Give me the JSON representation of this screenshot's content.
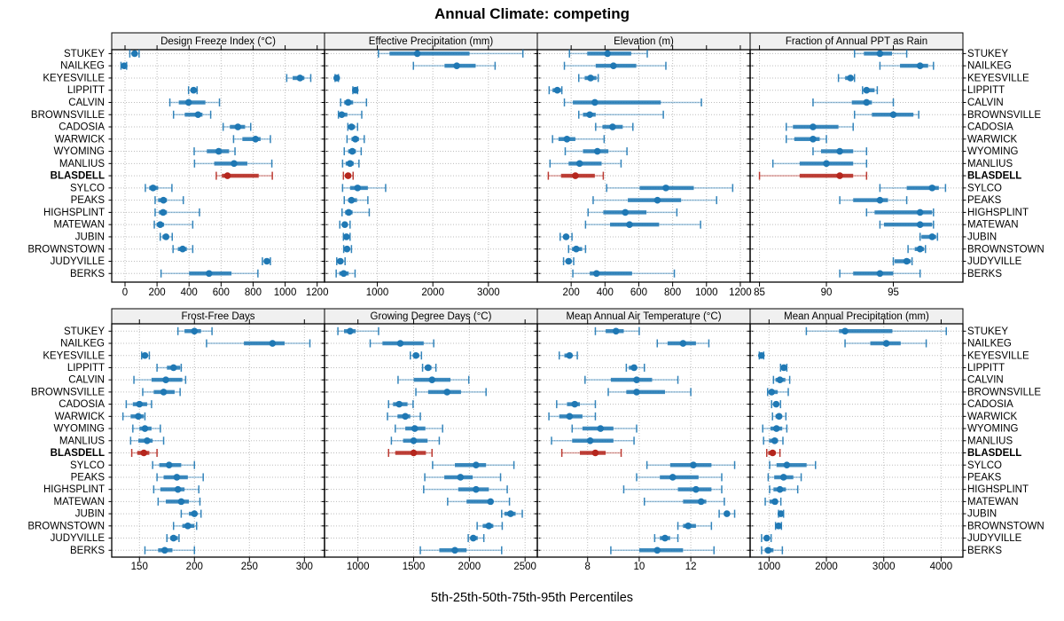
{
  "title": "Annual Climate: competing",
  "caption": "5th-25th-50th-75th-95th Percentiles",
  "percentiles": [
    5,
    25,
    50,
    75,
    95
  ],
  "highlight_station": "BLASDELL",
  "colors": {
    "series": "#1f78b4",
    "highlight": "#b5261d",
    "grid": "#bdbdbd",
    "header_bg": "#f0f0f0",
    "panel_border": "#000000",
    "text": "#000000"
  },
  "stations": [
    "STUKEY",
    "NAILKEG",
    "KEYESVILLE",
    "LIPPITT",
    "CALVIN",
    "BROWNSVILLE",
    "CADOSIA",
    "WARWICK",
    "WYOMING",
    "MANLIUS",
    "BLASDELL",
    "SYLCO",
    "PEAKS",
    "HIGHSPLINT",
    "MATEWAN",
    "JUBIN",
    "BROWNSTOWN",
    "JUDYVILLE",
    "BERKS"
  ],
  "chart_data": {
    "type": "dotplot-multipanel",
    "panel_layout": {
      "rows": 2,
      "cols": 4
    },
    "panels": [
      {
        "title": "Design Freeze Index (°C)",
        "row": "top",
        "col": 0,
        "xlim": [
          -83,
          1246
        ],
        "ticks": [
          0,
          200,
          400,
          600,
          800,
          1000,
          1200
        ],
        "values": [
          [
            30,
            42,
            60,
            78,
            88
          ],
          [
            -25,
            -12,
            -5,
            2,
            10
          ],
          [
            1010,
            1047,
            1093,
            1120,
            1160
          ],
          [
            397,
            410,
            428,
            441,
            450
          ],
          [
            280,
            336,
            397,
            502,
            590
          ],
          [
            303,
            373,
            456,
            484,
            535
          ],
          [
            613,
            655,
            705,
            750,
            785
          ],
          [
            678,
            733,
            815,
            847,
            908
          ],
          [
            432,
            511,
            585,
            650,
            687
          ],
          [
            434,
            557,
            681,
            764,
            917
          ],
          [
            570,
            605,
            640,
            835,
            920
          ],
          [
            127,
            151,
            175,
            207,
            293
          ],
          [
            188,
            207,
            240,
            262,
            364
          ],
          [
            188,
            212,
            238,
            262,
            465
          ],
          [
            183,
            197,
            220,
            244,
            423
          ],
          [
            220,
            234,
            256,
            271,
            295
          ],
          [
            300,
            330,
            360,
            386,
            423
          ],
          [
            858,
            871,
            886,
            899,
            908
          ],
          [
            225,
            400,
            525,
            665,
            830
          ]
        ]
      },
      {
        "title": "Effective Precipitation (mm)",
        "row": "top",
        "col": 1,
        "xlim": [
          50,
          3880
        ],
        "ticks": [
          1000,
          2000,
          3000
        ],
        "values": [
          [
            1020,
            1220,
            1720,
            2660,
            3620
          ],
          [
            1650,
            2210,
            2430,
            2770,
            3120
          ],
          [
            240,
            260,
            270,
            285,
            300
          ],
          [
            560,
            590,
            605,
            625,
            645
          ],
          [
            340,
            405,
            475,
            565,
            805
          ],
          [
            300,
            325,
            360,
            460,
            720
          ],
          [
            470,
            495,
            535,
            600,
            645
          ],
          [
            455,
            535,
            605,
            670,
            765
          ],
          [
            405,
            475,
            550,
            615,
            710
          ],
          [
            375,
            430,
            510,
            575,
            670
          ],
          [
            390,
            420,
            475,
            525,
            565
          ],
          [
            375,
            510,
            645,
            830,
            1150
          ],
          [
            405,
            475,
            535,
            635,
            830
          ],
          [
            365,
            420,
            485,
            555,
            855
          ],
          [
            325,
            385,
            415,
            450,
            510
          ],
          [
            390,
            430,
            445,
            465,
            510
          ],
          [
            395,
            430,
            455,
            480,
            535
          ],
          [
            270,
            310,
            335,
            360,
            420
          ],
          [
            260,
            315,
            395,
            485,
            600
          ]
        ]
      },
      {
        "title": "Elevation (m)",
        "row": "top",
        "col": 2,
        "xlim": [
          0,
          1258
        ],
        "ticks": [
          200,
          400,
          600,
          800,
          1000,
          1200
        ],
        "values": [
          [
            190,
            295,
            415,
            555,
            650
          ],
          [
            160,
            345,
            450,
            585,
            760
          ],
          [
            245,
            280,
            315,
            350,
            360
          ],
          [
            70,
            90,
            118,
            140,
            145
          ],
          [
            160,
            210,
            340,
            730,
            970
          ],
          [
            245,
            270,
            310,
            345,
            745
          ],
          [
            345,
            385,
            445,
            505,
            565
          ],
          [
            90,
            125,
            175,
            225,
            395
          ],
          [
            165,
            270,
            355,
            420,
            530
          ],
          [
            75,
            185,
            250,
            380,
            495
          ],
          [
            65,
            140,
            225,
            340,
            390
          ],
          [
            410,
            605,
            760,
            925,
            1155
          ],
          [
            330,
            535,
            710,
            850,
            1060
          ],
          [
            300,
            390,
            520,
            645,
            825
          ],
          [
            285,
            430,
            545,
            720,
            965
          ],
          [
            135,
            155,
            170,
            185,
            205
          ],
          [
            185,
            205,
            230,
            265,
            285
          ],
          [
            155,
            170,
            185,
            200,
            215
          ],
          [
            210,
            310,
            350,
            560,
            810
          ]
        ]
      },
      {
        "title": "Fraction of Annual PPT as Rain",
        "row": "top",
        "col": 3,
        "xlim": [
          84.3,
          100.2
        ],
        "ticks": [
          85,
          90,
          95
        ],
        "values": [
          [
            92.1,
            92.8,
            94,
            94.9,
            96
          ],
          [
            94,
            95.5,
            97,
            97.6,
            98
          ],
          [
            90.9,
            91.4,
            91.8,
            92,
            92.1
          ],
          [
            92.7,
            92.8,
            93,
            93.6,
            93.8
          ],
          [
            89,
            91.9,
            93,
            93.4,
            95
          ],
          [
            92.1,
            93.4,
            95,
            96.5,
            96.9
          ],
          [
            87,
            87.5,
            89,
            90.9,
            92
          ],
          [
            87,
            87.6,
            89,
            89.5,
            90
          ],
          [
            89,
            89.6,
            91,
            92,
            93
          ],
          [
            86,
            88,
            90,
            92,
            93
          ],
          [
            85,
            88,
            91,
            92,
            93
          ],
          [
            94,
            96,
            97.9,
            98.4,
            98.9
          ],
          [
            91,
            92,
            94,
            94.6,
            96
          ],
          [
            93,
            93.6,
            97,
            97.9,
            98
          ],
          [
            94,
            94.3,
            97,
            97.9,
            98
          ],
          [
            97,
            97.1,
            97.9,
            98.2,
            98.3
          ],
          [
            96.1,
            96.6,
            97,
            97.3,
            97.4
          ],
          [
            95,
            95.1,
            96,
            96.3,
            96.4
          ],
          [
            91,
            92,
            94,
            95,
            97
          ]
        ]
      },
      {
        "title": "Frost-Free Days",
        "row": "bottom",
        "col": 0,
        "xlim": [
          124.8,
          318.3
        ],
        "ticks": [
          150,
          200,
          250,
          300
        ],
        "values": [
          [
            185,
            191,
            200,
            206,
            216
          ],
          [
            211,
            245,
            271,
            282,
            305
          ],
          [
            152,
            153,
            155,
            157,
            159
          ],
          [
            166,
            175,
            181,
            187,
            188
          ],
          [
            145,
            161,
            174,
            189,
            192
          ],
          [
            153,
            163,
            172,
            182,
            187
          ],
          [
            138,
            144,
            150,
            157,
            161
          ],
          [
            135,
            142,
            149,
            154,
            155
          ],
          [
            144,
            150,
            155,
            161,
            169
          ],
          [
            142,
            149,
            157,
            162,
            172
          ],
          [
            143,
            148,
            154,
            159,
            166
          ],
          [
            162,
            168,
            177,
            188,
            200
          ],
          [
            166,
            172,
            184,
            194,
            208
          ],
          [
            163,
            169,
            185,
            191,
            204
          ],
          [
            167,
            174,
            188,
            195,
            205
          ],
          [
            188,
            195,
            200,
            202,
            206
          ],
          [
            181,
            189,
            194,
            200,
            202
          ],
          [
            175,
            178,
            181,
            185,
            186
          ],
          [
            155,
            167,
            173,
            180,
            200
          ]
        ]
      },
      {
        "title": "Growing Degree Days (°C)",
        "row": "bottom",
        "col": 1,
        "xlim": [
          700,
          2610
        ],
        "ticks": [
          1000,
          1500,
          2000,
          2500
        ],
        "values": [
          [
            820,
            875,
            930,
            980,
            1185
          ],
          [
            1110,
            1220,
            1380,
            1590,
            1680
          ],
          [
            1470,
            1495,
            1520,
            1550,
            1570
          ],
          [
            1580,
            1600,
            1630,
            1660,
            1700
          ],
          [
            1360,
            1500,
            1665,
            1830,
            1995
          ],
          [
            1520,
            1630,
            1800,
            1925,
            2150
          ],
          [
            1275,
            1315,
            1370,
            1445,
            1495
          ],
          [
            1265,
            1355,
            1425,
            1470,
            1560
          ],
          [
            1335,
            1425,
            1510,
            1605,
            1760
          ],
          [
            1300,
            1405,
            1500,
            1625,
            1730
          ],
          [
            1275,
            1335,
            1500,
            1610,
            1665
          ],
          [
            1670,
            1870,
            2060,
            2150,
            2400
          ],
          [
            1600,
            1775,
            1920,
            2030,
            2280
          ],
          [
            1590,
            1900,
            2060,
            2175,
            2340
          ],
          [
            1805,
            1975,
            2190,
            2215,
            2360
          ],
          [
            2290,
            2315,
            2370,
            2415,
            2475
          ],
          [
            2070,
            2120,
            2175,
            2215,
            2295
          ],
          [
            1990,
            2010,
            2035,
            2075,
            2130
          ],
          [
            1560,
            1730,
            1870,
            1975,
            2290
          ]
        ]
      },
      {
        "title": "Mean Annual Air Temperature (°C)",
        "row": "bottom",
        "col": 2,
        "xlim": [
          6.05,
          14.3
        ],
        "ticks": [
          8,
          10,
          12
        ],
        "values": [
          [
            8.3,
            8.7,
            9.1,
            9.4,
            10
          ],
          [
            10.7,
            11.1,
            11.7,
            12.2,
            12.7
          ],
          [
            6.9,
            7.1,
            7.3,
            7.4,
            7.6
          ],
          [
            9.5,
            9.6,
            9.8,
            9.9,
            10.2
          ],
          [
            7.9,
            8.9,
            9.9,
            10.5,
            11.5
          ],
          [
            8.8,
            9.5,
            9.9,
            11,
            12
          ],
          [
            6.8,
            7.2,
            7.5,
            7.7,
            8.3
          ],
          [
            6.5,
            6.9,
            7.3,
            7.8,
            8.3
          ],
          [
            7.4,
            7.8,
            8.5,
            9,
            9.9
          ],
          [
            6.6,
            7.4,
            8.1,
            9,
            9.8
          ],
          [
            7,
            7.7,
            8.3,
            8.7,
            9.3
          ],
          [
            10.3,
            11.2,
            12.1,
            12.8,
            13.7
          ],
          [
            9.9,
            10.8,
            11.3,
            12.3,
            13.2
          ],
          [
            9.4,
            11.5,
            12.2,
            12.8,
            13.2
          ],
          [
            10.2,
            11.7,
            12.4,
            12.6,
            13.3
          ],
          [
            13.1,
            13.3,
            13.4,
            13.5,
            13.7
          ],
          [
            11.5,
            11.7,
            11.9,
            12.2,
            12.8
          ],
          [
            10.6,
            10.8,
            11,
            11.2,
            11.5
          ],
          [
            8.9,
            10,
            10.7,
            11.7,
            12.9
          ]
        ]
      },
      {
        "title": "Mean Annual Precipitation (mm)",
        "row": "bottom",
        "col": 3,
        "xlim": [
          670,
          4380
        ],
        "ticks": [
          1000,
          2000,
          3000,
          4000
        ],
        "values": [
          [
            1650,
            2220,
            2325,
            3150,
            4090
          ],
          [
            2325,
            2765,
            3045,
            3295,
            3740
          ],
          [
            830,
            850,
            866,
            880,
            907
          ],
          [
            1200,
            1215,
            1258,
            1294,
            1310
          ],
          [
            1077,
            1113,
            1190,
            1284,
            1360
          ],
          [
            975,
            995,
            1045,
            1150,
            1335
          ],
          [
            1045,
            1090,
            1124,
            1165,
            1200
          ],
          [
            1060,
            1113,
            1175,
            1216,
            1294
          ],
          [
            890,
            1025,
            1130,
            1230,
            1310
          ],
          [
            905,
            1000,
            1098,
            1155,
            1242
          ],
          [
            960,
            985,
            1062,
            1113,
            1190
          ],
          [
            1010,
            1130,
            1310,
            1655,
            1810
          ],
          [
            985,
            1090,
            1253,
            1423,
            1560
          ],
          [
            1010,
            1077,
            1190,
            1294,
            1500
          ],
          [
            933,
            1010,
            1103,
            1150,
            1206
          ],
          [
            1165,
            1180,
            1206,
            1232,
            1253
          ],
          [
            1113,
            1140,
            1165,
            1190,
            1216
          ],
          [
            870,
            923,
            960,
            995,
            1036
          ],
          [
            870,
            925,
            985,
            1077,
            1232
          ]
        ]
      }
    ]
  }
}
